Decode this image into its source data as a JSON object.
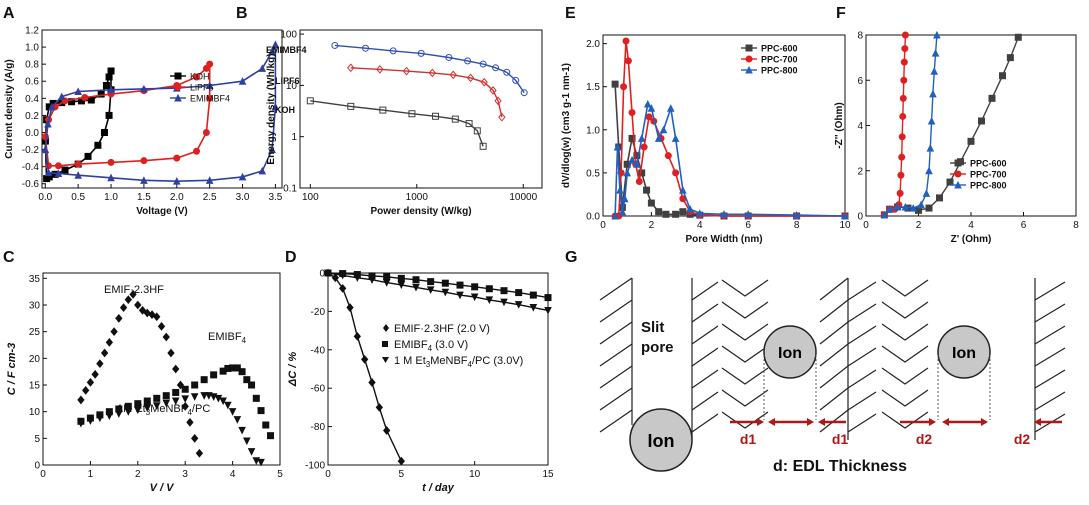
{
  "figure": {
    "panel_labels": [
      "A",
      "B",
      "C",
      "D",
      "E",
      "F",
      "G"
    ]
  },
  "chart_data": [
    {
      "id": "A",
      "type": "line",
      "xlabel": "Voltage (V)",
      "ylabel": "Current density (A/g)",
      "xlim": [
        -0.05,
        3.6
      ],
      "ylim": [
        -0.65,
        1.2
      ],
      "xticks": [
        "0.0",
        "0.5",
        "1.0",
        "1.5",
        "2.0",
        "2.5",
        "3.0",
        "3.5"
      ],
      "xtick_values": [
        0,
        0.5,
        1,
        1.5,
        2,
        2.5,
        3,
        3.5
      ],
      "yticks": [
        "-0.6",
        "-0.4",
        "-0.2",
        "0.0",
        "0.2",
        "0.4",
        "0.6",
        "0.8",
        "1.0",
        "1.2"
      ],
      "ytick_values": [
        -0.6,
        -0.4,
        -0.2,
        0,
        0.2,
        0.4,
        0.6,
        0.8,
        1.0,
        1.2
      ],
      "legend_position": "middle-right",
      "series": [
        {
          "name": "KOH",
          "color": "#000000",
          "marker": "square",
          "x": [
            0,
            0.02,
            0.06,
            0.12,
            0.25,
            0.4,
            0.55,
            0.7,
            0.85,
            0.93,
            0.97,
            1.0,
            1.0,
            0.97,
            0.9,
            0.8,
            0.65,
            0.5,
            0.3,
            0.15,
            0.06,
            0.02,
            0
          ],
          "y": [
            -0.1,
            0.15,
            0.3,
            0.34,
            0.35,
            0.36,
            0.37,
            0.38,
            0.45,
            0.55,
            0.65,
            0.72,
            0.5,
            0.2,
            0.0,
            -0.15,
            -0.28,
            -0.37,
            -0.44,
            -0.49,
            -0.52,
            -0.54,
            -0.1
          ]
        },
        {
          "name": "LiPF6",
          "color": "#e02020",
          "marker": "circle",
          "x": [
            0,
            0.05,
            0.15,
            0.3,
            0.6,
            1.0,
            1.5,
            2.0,
            2.3,
            2.45,
            2.5,
            2.5,
            2.45,
            2.3,
            2.0,
            1.5,
            1.0,
            0.5,
            0.2,
            0.05,
            0
          ],
          "y": [
            -0.05,
            0.15,
            0.3,
            0.37,
            0.41,
            0.45,
            0.49,
            0.55,
            0.65,
            0.75,
            0.8,
            0.4,
            0.0,
            -0.22,
            -0.3,
            -0.33,
            -0.35,
            -0.37,
            -0.39,
            -0.39,
            -0.05
          ]
        },
        {
          "name": "EMIMBF4",
          "color": "#3040a0",
          "marker": "triangle",
          "x": [
            0,
            0.04,
            0.1,
            0.25,
            0.5,
            1.0,
            1.5,
            2.0,
            2.5,
            3.0,
            3.3,
            3.45,
            3.5,
            3.5,
            3.45,
            3.3,
            3.0,
            2.5,
            2.0,
            1.5,
            1.0,
            0.5,
            0.2,
            0.05,
            0
          ],
          "y": [
            -0.2,
            0.1,
            0.3,
            0.42,
            0.48,
            0.5,
            0.51,
            0.52,
            0.55,
            0.6,
            0.75,
            0.95,
            1.03,
            0.3,
            -0.2,
            -0.45,
            -0.52,
            -0.56,
            -0.57,
            -0.56,
            -0.53,
            -0.5,
            -0.48,
            -0.47,
            -0.2
          ]
        }
      ]
    },
    {
      "id": "B",
      "type": "line",
      "xscale": "log",
      "yscale": "log",
      "xlabel": "Power density (W/kg)",
      "ylabel": "Energy density (Wh/kg)",
      "xlim": [
        80,
        15000
      ],
      "ylim": [
        0.1,
        120
      ],
      "xticks": [
        "100",
        "1000",
        "10000"
      ],
      "xtick_values": [
        100,
        1000,
        10000
      ],
      "yticks": [
        "0.1",
        "1",
        "10",
        "100"
      ],
      "ytick_values": [
        0.1,
        1,
        10,
        100
      ],
      "series": [
        {
          "name": "EMIMBF4",
          "color": "#3050b0",
          "marker": "circle",
          "x": [
            170,
            330,
            600,
            1100,
            2000,
            3000,
            4200,
            5500,
            7000,
            8500,
            10200
          ],
          "y": [
            60,
            53,
            47,
            42,
            35,
            30,
            26,
            22,
            18,
            12.5,
            7.2
          ]
        },
        {
          "name": "LiPF6",
          "color": "#d03030",
          "marker": "diamond",
          "x": [
            240,
            450,
            800,
            1400,
            2200,
            3200,
            4300,
            5200,
            5800,
            6300
          ],
          "y": [
            22,
            20.5,
            19,
            17.5,
            16,
            14,
            11.5,
            8,
            5,
            2.4
          ]
        },
        {
          "name": "KOH",
          "color": "#404040",
          "marker": "square",
          "x": [
            100,
            240,
            480,
            900,
            1500,
            2300,
            3100,
            3700,
            4200
          ],
          "y": [
            5,
            3.9,
            3.3,
            2.8,
            2.5,
            2.2,
            1.8,
            1.3,
            0.65
          ]
        }
      ],
      "labels": [
        "EMIMBF4",
        "LiPF6",
        "KOH"
      ]
    },
    {
      "id": "C",
      "type": "scatter",
      "xlabel": "V / V",
      "ylabel": "C / F cm-3",
      "xlim": [
        0,
        5
      ],
      "ylim": [
        0,
        36
      ],
      "xticks": [
        "0",
        "1",
        "2",
        "3",
        "4",
        "5"
      ],
      "xtick_values": [
        0,
        1,
        2,
        3,
        4,
        5
      ],
      "yticks": [
        "0",
        "5",
        "10",
        "15",
        "20",
        "25",
        "30",
        "35"
      ],
      "ytick_values": [
        0,
        5,
        10,
        15,
        20,
        25,
        30,
        35
      ],
      "series": [
        {
          "name": "EMIF·2.3HF",
          "marker": "diamond",
          "x": [
            0.8,
            0.9,
            1.0,
            1.1,
            1.2,
            1.3,
            1.4,
            1.5,
            1.6,
            1.7,
            1.8,
            1.9,
            2.0,
            2.1,
            2.2,
            2.3,
            2.4,
            2.5,
            2.6,
            2.7,
            2.8,
            2.9,
            3.0,
            3.1,
            3.2,
            3.3
          ],
          "y": [
            12.2,
            14,
            15.5,
            17,
            19,
            21,
            23,
            25,
            27.5,
            29.5,
            31,
            32,
            30,
            29,
            28.5,
            28.2,
            27.8,
            26,
            24,
            21,
            18,
            15,
            11,
            8,
            5,
            2.2
          ]
        },
        {
          "name": "EMIBF4",
          "marker": "square",
          "x": [
            0.8,
            1.0,
            1.2,
            1.4,
            1.6,
            1.8,
            2.0,
            2.2,
            2.4,
            2.6,
            2.8,
            3.0,
            3.2,
            3.4,
            3.6,
            3.8,
            3.9,
            4.0,
            4.1,
            4.2,
            4.3,
            4.4,
            4.5,
            4.6,
            4.7,
            4.8
          ],
          "y": [
            8.2,
            8.8,
            9.4,
            10,
            10.5,
            11,
            11.5,
            12,
            12.5,
            13,
            13.6,
            14.2,
            15,
            16,
            16.9,
            17.6,
            18.1,
            18.2,
            18.2,
            17.5,
            16,
            15,
            12.5,
            10.2,
            7.5,
            5.5
          ]
        },
        {
          "name": "1M Et3MeNBF4/PC",
          "marker": "triangle-down",
          "x": [
            0.8,
            1.0,
            1.2,
            1.4,
            1.6,
            1.8,
            2.0,
            2.2,
            2.4,
            2.6,
            2.8,
            3.0,
            3.2,
            3.4,
            3.5,
            3.6,
            3.7,
            3.8,
            3.9,
            4.0,
            4.1,
            4.2,
            4.3,
            4.4,
            4.5,
            4.6
          ],
          "y": [
            7.8,
            8.3,
            8.8,
            9.2,
            9.6,
            10,
            10.3,
            10.7,
            11.1,
            11.6,
            12,
            12.4,
            12.8,
            13,
            13,
            12.8,
            12.5,
            12,
            11.2,
            10,
            8.5,
            6.5,
            4.5,
            2.5,
            0.8,
            0.5
          ]
        }
      ],
      "annotations": {
        "a1": "EMIF·2.3HF",
        "a2_main": "EMIBF",
        "a2_sub": "4",
        "a3_main": "1M Et",
        "a3_sub": "3",
        "a3_rest": "MeNBF",
        "a3_sub2": "4",
        "a3_tail": "/PC"
      }
    },
    {
      "id": "D",
      "type": "line",
      "xlabel": "t / day",
      "ylabel": "ΔC / %",
      "xlim": [
        0,
        15
      ],
      "ylim": [
        -100,
        0
      ],
      "xticks": [
        "0",
        "5",
        "10",
        "15"
      ],
      "xtick_values": [
        0,
        5,
        10,
        15
      ],
      "yticks": [
        "0",
        "-20",
        "-40",
        "-60",
        "-80",
        "-100"
      ],
      "ytick_values": [
        0,
        -20,
        -40,
        -60,
        -80,
        -100
      ],
      "series": [
        {
          "name": "EMIF·2.3HF (2.0 V)",
          "marker": "diamond",
          "x": [
            0,
            0.5,
            1,
            1.5,
            2,
            2.5,
            3,
            3.5,
            4,
            5
          ],
          "y": [
            0,
            -2.5,
            -8,
            -18,
            -33,
            -45,
            -57,
            -70,
            -82,
            -98
          ]
        },
        {
          "name": "EMIBF4 (3.0 V)",
          "marker": "square",
          "x": [
            0,
            1,
            2,
            3,
            4,
            5,
            6,
            7,
            8,
            9,
            10,
            11,
            12,
            13,
            14,
            15
          ],
          "y": [
            0,
            -0.3,
            -0.8,
            -1.5,
            -2,
            -2.8,
            -3.5,
            -4.5,
            -5.3,
            -6.3,
            -7.2,
            -8.2,
            -9.2,
            -10.2,
            -11.5,
            -12.8
          ]
        },
        {
          "name": "1 M Et3MeNBF4/PC (3.0V)",
          "marker": "triangle-down",
          "x": [
            0,
            1,
            2,
            3,
            4,
            5,
            6,
            7,
            8,
            9,
            10,
            11,
            12,
            13,
            14,
            15
          ],
          "y": [
            0,
            -1.2,
            -2.5,
            -3.5,
            -5,
            -6.2,
            -7.5,
            -8.8,
            -10,
            -11.5,
            -12.5,
            -14,
            -15.2,
            -16.5,
            -18,
            -19.5
          ]
        }
      ],
      "legend": {
        "l1": "EMIF·2.3HF (2.0 V)",
        "l2_main": "EMIBF",
        "l2_sub": "4",
        "l2_rest": " (3.0 V)",
        "l3_main": "1 M Et",
        "l3_sub": "3",
        "l3_rest": "MeNBF",
        "l3_sub2": "4",
        "l3_tail": "/PC (3.0V)"
      }
    },
    {
      "id": "E",
      "type": "line",
      "xlabel": "Pore Width (nm)",
      "ylabel": "dV/dlog(w) (cm3 g-1 nm-1)",
      "xlim": [
        0,
        10
      ],
      "ylim": [
        0,
        2.1
      ],
      "xticks": [
        "0",
        "2",
        "4",
        "6",
        "8",
        "10"
      ],
      "xtick_values": [
        0,
        2,
        4,
        6,
        8,
        10
      ],
      "yticks": [
        "0.0",
        "0.5",
        "1.0",
        "1.5",
        "2.0"
      ],
      "ytick_values": [
        0,
        0.5,
        1.0,
        1.5,
        2.0
      ],
      "series": [
        {
          "name": "PPC-600",
          "color": "#404040",
          "marker": "square",
          "x": [
            0.5,
            0.65,
            0.8,
            1.0,
            1.2,
            1.4,
            1.6,
            1.8,
            2.0,
            2.3,
            2.6,
            3.0,
            3.3,
            3.6,
            4,
            5,
            6,
            8,
            10
          ],
          "y": [
            1.53,
            0.8,
            0.1,
            0.6,
            0.9,
            0.7,
            0.5,
            0.3,
            0.15,
            0.05,
            0.02,
            0.02,
            0.05,
            0.02,
            0.01,
            0,
            0,
            0,
            0
          ]
        },
        {
          "name": "PPC-700",
          "color": "#e02020",
          "marker": "circle",
          "x": [
            0.5,
            0.65,
            0.75,
            0.85,
            0.95,
            1.05,
            1.2,
            1.35,
            1.5,
            1.7,
            1.9,
            2.1,
            2.4,
            2.7,
            3.0,
            3.3,
            3.6,
            4,
            5,
            6,
            8,
            10
          ],
          "y": [
            0,
            0,
            0.5,
            1.5,
            2.03,
            1.8,
            1.2,
            0.6,
            0.4,
            0.8,
            1.15,
            1.1,
            0.9,
            0.7,
            0.5,
            0.2,
            0.05,
            0.01,
            0,
            0,
            0,
            0
          ]
        },
        {
          "name": "PPC-800",
          "color": "#2060c0",
          "marker": "triangle",
          "x": [
            0.5,
            0.6,
            0.7,
            0.8,
            0.9,
            1.0,
            1.2,
            1.4,
            1.6,
            1.85,
            2.0,
            2.3,
            2.5,
            2.8,
            3.0,
            3.3,
            3.6,
            4,
            5,
            6,
            8,
            10
          ],
          "y": [
            0,
            0.8,
            0.3,
            0.05,
            0.2,
            0.5,
            0.65,
            0.6,
            0.9,
            1.3,
            1.25,
            0.9,
            1.0,
            1.25,
            0.9,
            0.3,
            0.08,
            0.03,
            0.02,
            0.02,
            0.01,
            0
          ]
        }
      ]
    },
    {
      "id": "F",
      "type": "line",
      "xlabel": "Z' (Ohm)",
      "ylabel": "-Z'' (Ohm)",
      "xlim": [
        0,
        8
      ],
      "ylim": [
        0,
        8
      ],
      "xticks": [
        "0",
        "2",
        "4",
        "6",
        "8"
      ],
      "xtick_values": [
        0,
        2,
        4,
        6,
        8
      ],
      "yticks": [
        "0",
        "2",
        "4",
        "6",
        "8"
      ],
      "ytick_values": [
        0,
        2,
        4,
        6,
        8
      ],
      "series": [
        {
          "name": "PPC-600",
          "color": "#404040",
          "marker": "square",
          "x": [
            0.7,
            0.9,
            1.2,
            1.6,
            2.0,
            2.4,
            2.8,
            3.2,
            3.6,
            4.0,
            4.4,
            4.8,
            5.2,
            5.5,
            5.8
          ],
          "y": [
            0.05,
            0.3,
            0.4,
            0.35,
            0.25,
            0.35,
            0.8,
            1.5,
            2.4,
            3.3,
            4.2,
            5.2,
            6.2,
            7.0,
            7.9
          ]
        },
        {
          "name": "PPC-700",
          "color": "#e02020",
          "marker": "circle",
          "x": [
            0.7,
            0.9,
            1.1,
            1.25,
            1.3,
            1.33,
            1.36,
            1.38,
            1.4,
            1.42,
            1.44,
            1.46,
            1.48,
            1.5
          ],
          "y": [
            0.05,
            0.3,
            0.3,
            0.5,
            1.0,
            1.8,
            2.6,
            3.5,
            4.4,
            5.2,
            6.0,
            6.8,
            7.4,
            8.0
          ]
        },
        {
          "name": "PPC-800",
          "color": "#2060c0",
          "marker": "triangle",
          "x": [
            0.7,
            0.9,
            1.2,
            1.5,
            1.8,
            2.1,
            2.3,
            2.4,
            2.45,
            2.5,
            2.55,
            2.6,
            2.65,
            2.7
          ],
          "y": [
            0.05,
            0.3,
            0.4,
            0.4,
            0.35,
            0.5,
            1.0,
            2.0,
            3.0,
            4.2,
            5.4,
            6.4,
            7.2,
            8.0
          ]
        }
      ]
    }
  ],
  "schematic": {
    "slit_pore": "Slit\npore",
    "slit1": "Slit",
    "slit2": "pore",
    "ion": "Ion",
    "d1": "d1",
    "d2": "d2",
    "caption": "d: EDL Thickness",
    "ion_fill": "#c8c8c8",
    "arrow_color": "#b01818"
  }
}
